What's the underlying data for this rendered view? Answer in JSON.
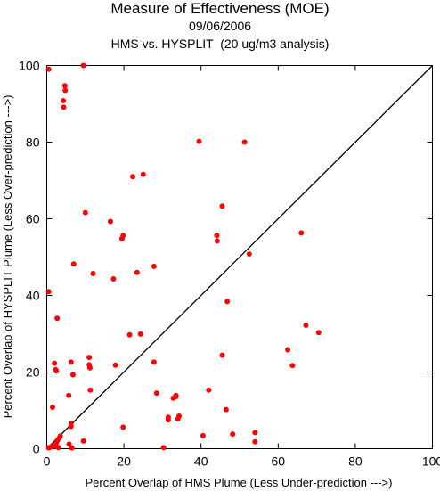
{
  "chart_data": {
    "type": "scatter",
    "title": "Measure of Effectiveness (MOE)",
    "subtitle": "09/06/2006",
    "subtitle2": "HMS vs. HYSPLIT  (20 ug/m3 analysis)",
    "xlabel": "Percent Overlap of HMS Plume (Less Under-prediction --->)",
    "ylabel": "Percent Overlap of HYSPLIT Plume (Less Over-prediction --->)",
    "xlim": [
      0,
      100
    ],
    "ylim": [
      0,
      100
    ],
    "xticks": [
      0,
      20,
      40,
      60,
      80,
      100
    ],
    "yticks": [
      0,
      20,
      40,
      60,
      80,
      100
    ],
    "diagonal": true,
    "marker_color": "#ff0000",
    "points": [
      [
        0.5,
        99
      ],
      [
        9.5,
        100
      ],
      [
        4.7,
        94.7
      ],
      [
        4.8,
        93.5
      ],
      [
        4.3,
        90.8
      ],
      [
        4.4,
        89.1
      ],
      [
        39.5,
        80.2
      ],
      [
        51.3,
        80
      ],
      [
        25,
        71.6
      ],
      [
        22.3,
        71
      ],
      [
        45.5,
        63.3
      ],
      [
        10,
        61.6
      ],
      [
        16.5,
        59.3
      ],
      [
        66,
        56.3
      ],
      [
        19.8,
        55.6
      ],
      [
        19.5,
        54.8
      ],
      [
        44.1,
        55.6
      ],
      [
        44.2,
        54.2
      ],
      [
        52.5,
        50.8
      ],
      [
        7,
        48.2
      ],
      [
        27.8,
        47.6
      ],
      [
        23.4,
        46
      ],
      [
        12,
        45.7
      ],
      [
        17.3,
        44.3
      ],
      [
        0.5,
        41
      ],
      [
        46.8,
        38.4
      ],
      [
        2.7,
        34
      ],
      [
        67.2,
        32.2
      ],
      [
        70.5,
        30.3
      ],
      [
        24.3,
        29.9
      ],
      [
        21.5,
        29.7
      ],
      [
        62.5,
        25.8
      ],
      [
        45.5,
        24.4
      ],
      [
        11,
        23.8
      ],
      [
        63.7,
        21.7
      ],
      [
        17.8,
        21.8
      ],
      [
        11,
        21.9
      ],
      [
        11.2,
        21.1
      ],
      [
        6.3,
        22.6
      ],
      [
        27.8,
        22.6
      ],
      [
        2,
        22.3
      ],
      [
        2.3,
        20.6
      ],
      [
        2.5,
        20.3
      ],
      [
        6.8,
        19.3
      ],
      [
        11.3,
        15.3
      ],
      [
        42,
        15.3
      ],
      [
        28.5,
        14.5
      ],
      [
        33.5,
        13.9
      ],
      [
        33.5,
        13.6
      ],
      [
        32.8,
        13.2
      ],
      [
        5.7,
        13.9
      ],
      [
        1.5,
        10.8
      ],
      [
        46.5,
        10.2
      ],
      [
        34.3,
        8.5
      ],
      [
        34,
        7.8
      ],
      [
        31.5,
        8.2
      ],
      [
        31.5,
        7.5
      ],
      [
        6.3,
        6.6
      ],
      [
        6.3,
        5.8
      ],
      [
        19.8,
        5.6
      ],
      [
        54,
        4.2
      ],
      [
        48.2,
        3.8
      ],
      [
        40.5,
        3.4
      ],
      [
        3.5,
        3.3
      ],
      [
        3.2,
        2.7
      ],
      [
        2.8,
        2.2
      ],
      [
        9.5,
        2
      ],
      [
        54,
        1.8
      ],
      [
        5.8,
        1.2
      ],
      [
        2.5,
        1.5
      ],
      [
        1.5,
        0.8
      ],
      [
        2.3,
        0.7
      ],
      [
        1.0,
        0.4
      ],
      [
        0.5,
        0.2
      ],
      [
        3,
        0.3
      ],
      [
        6.5,
        0.2
      ],
      [
        30.3,
        0.3
      ]
    ]
  }
}
